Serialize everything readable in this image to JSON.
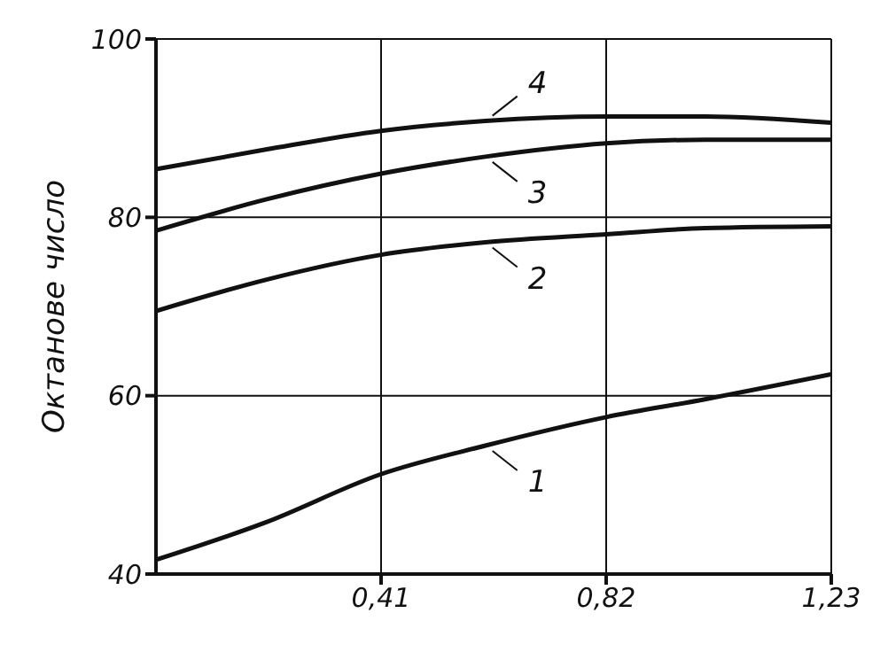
{
  "chart_data": {
    "type": "line",
    "ylabel": "Октанове число",
    "x": [
      0,
      0.2,
      0.41,
      0.6,
      0.82,
      1.0,
      1.23
    ],
    "series": [
      {
        "name": "1",
        "color": "#111111",
        "values": [
          41.6,
          45.8,
          51.2,
          54.4,
          57.6,
          59.6,
          62.4
        ]
      },
      {
        "name": "2",
        "color": "#111111",
        "values": [
          69.5,
          73,
          75.8,
          77.2,
          78.1,
          78.8,
          79
        ]
      },
      {
        "name": "3",
        "color": "#111111",
        "values": [
          78.5,
          82,
          84.9,
          86.8,
          88.3,
          88.7,
          88.7
        ]
      },
      {
        "name": "4",
        "color": "#111111",
        "values": [
          85.4,
          87.6,
          89.7,
          90.8,
          91.3,
          91.3,
          90.6
        ]
      }
    ],
    "xlim": [
      0,
      1.23
    ],
    "xticks": [
      {
        "value": 0.41,
        "label": "0,41"
      },
      {
        "value": 0.82,
        "label": "0,82"
      },
      {
        "value": 1.23,
        "label": "1,23"
      }
    ],
    "ylim": [
      40,
      100
    ],
    "yticks": [
      40,
      60,
      80,
      100
    ],
    "grid": true,
    "legend": "center",
    "marker": "none",
    "line_style": "solid"
  }
}
